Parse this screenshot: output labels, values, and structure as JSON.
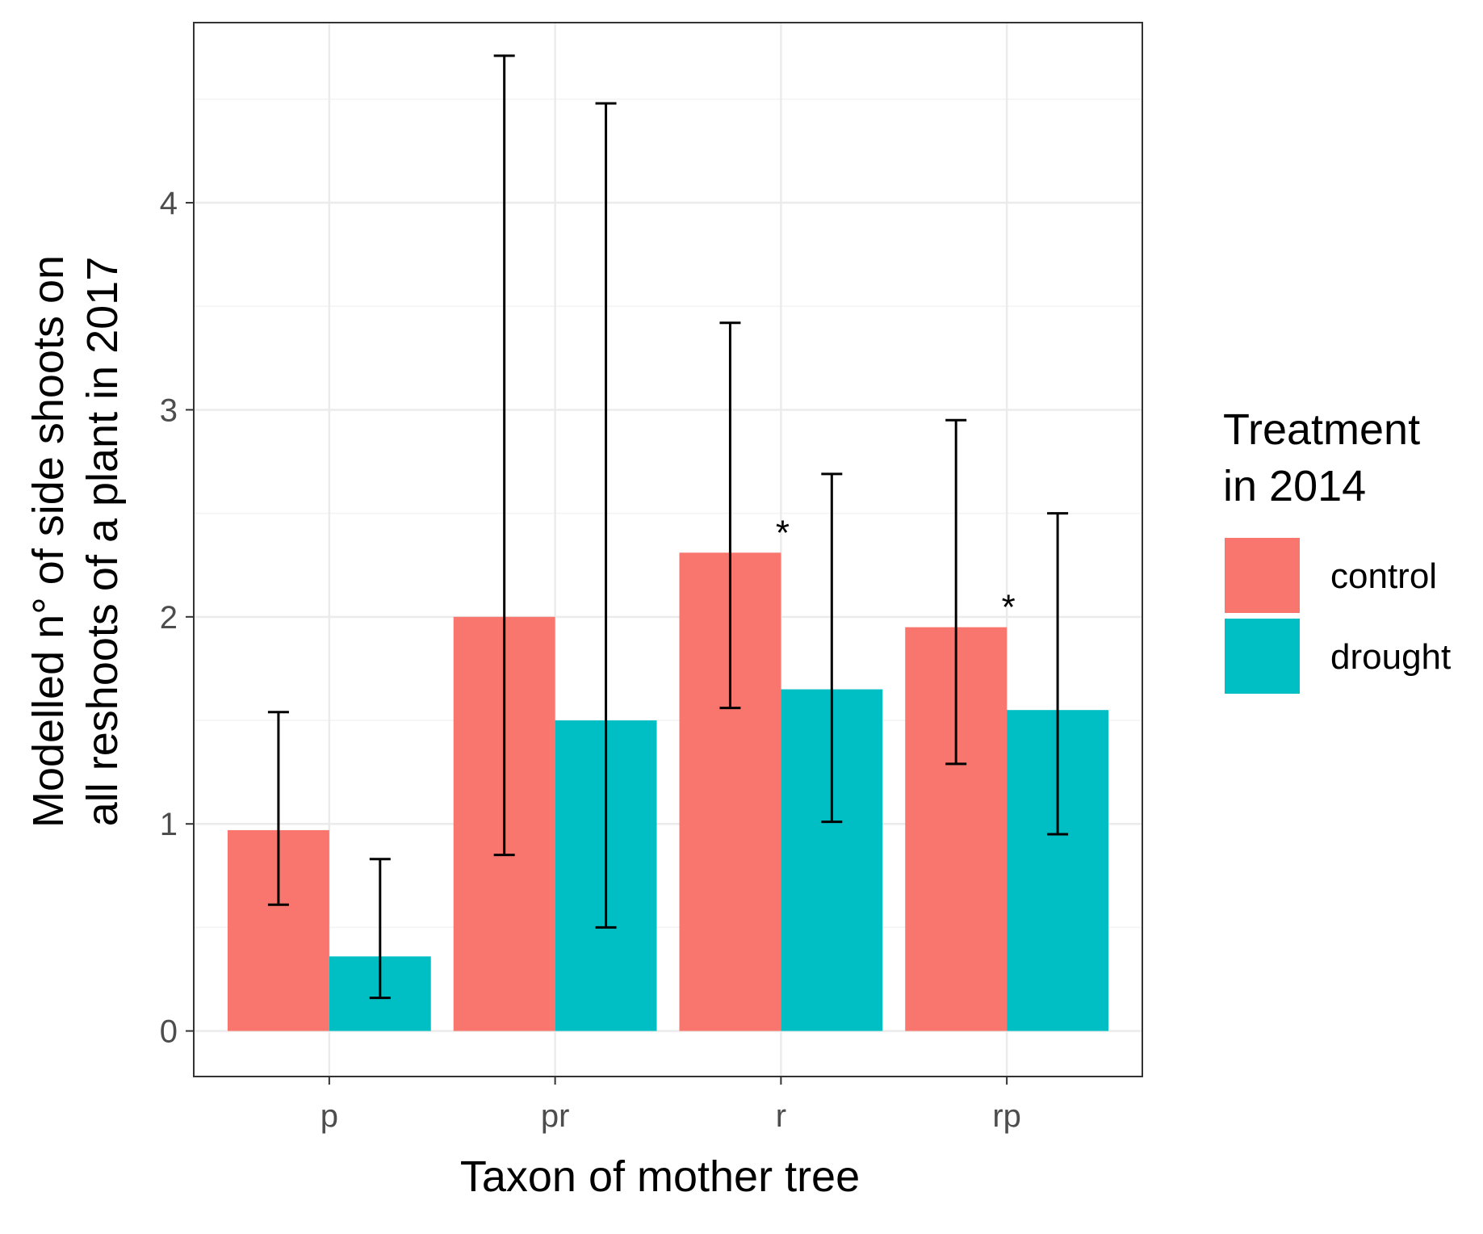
{
  "chart_data": {
    "type": "bar",
    "title": "",
    "xlabel": "Taxon of mother tree",
    "ylabel_lines": [
      "Modelled n° of side shoots on",
      "all reshoots of a plant in 2017"
    ],
    "categories": [
      "p",
      "pr",
      "r",
      "rp"
    ],
    "ylim": [
      -0.22,
      4.87
    ],
    "yticks": [
      0,
      1,
      2,
      3,
      4
    ],
    "ytick_labels": [
      "0",
      "1",
      "2",
      "3",
      "4"
    ],
    "grid": true,
    "legend": {
      "title_lines": [
        "Treatment",
        "in 2014"
      ],
      "position": "right"
    },
    "series": [
      {
        "name": "control",
        "color": "#F8766D",
        "values": [
          0.97,
          2.0,
          2.31,
          1.95
        ],
        "ci_low": [
          0.61,
          0.85,
          1.56,
          1.29
        ],
        "ci_high": [
          1.54,
          4.71,
          3.42,
          2.95
        ],
        "annotations": [
          "",
          "",
          "*",
          "*"
        ]
      },
      {
        "name": "drought",
        "color": "#00BFC4",
        "values": [
          0.36,
          1.5,
          1.65,
          1.55
        ],
        "ci_low": [
          0.16,
          0.5,
          1.01,
          0.95
        ],
        "ci_high": [
          0.83,
          4.48,
          2.69,
          2.5
        ],
        "annotations": [
          "",
          "",
          "",
          ""
        ]
      }
    ]
  }
}
